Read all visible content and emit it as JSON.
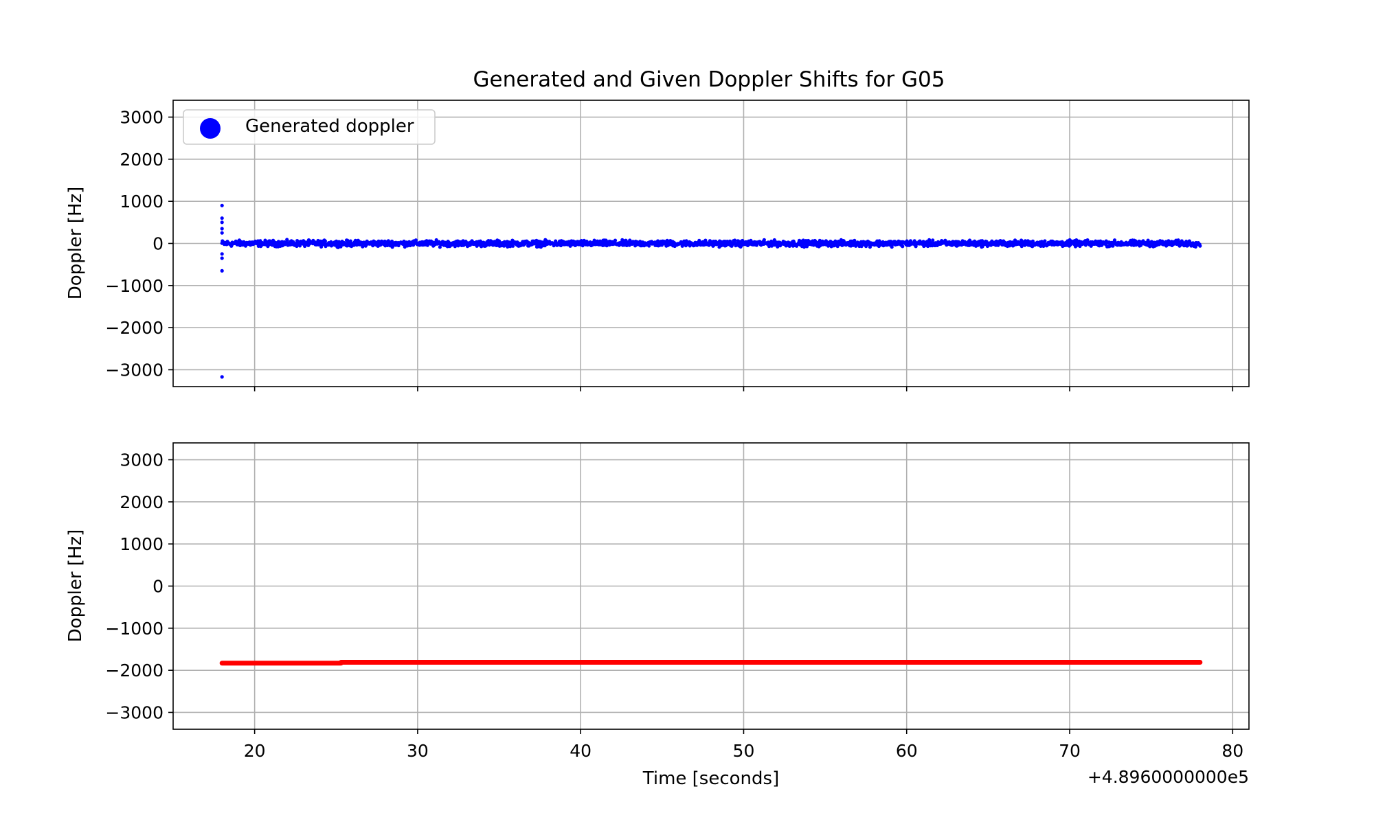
{
  "chart_data": {
    "type": "scatter",
    "title": "Generated and Given Doppler Shifts for G05",
    "xlabel": "Time [seconds]",
    "x_offset_label": "+4.8960000000e5",
    "xlim": [
      15,
      81
    ],
    "xticks": [
      20,
      30,
      40,
      50,
      60,
      70,
      80
    ],
    "xtick_labels": [
      "20",
      "30",
      "40",
      "50",
      "60",
      "70",
      "80"
    ],
    "shared_x": true,
    "grid": true,
    "panels": [
      {
        "position": "top",
        "ylabel": "Doppler [Hz]",
        "ylim": [
          -3400,
          3400
        ],
        "yticks": [
          3000,
          2000,
          1000,
          0,
          -1000,
          -2000,
          -3000
        ],
        "ytick_labels": [
          "3000",
          "2000",
          "1000",
          "0",
          "−1000",
          "−2000",
          "−3000"
        ],
        "legend": {
          "entries": [
            "Generated doppler"
          ],
          "placement": "upper left"
        },
        "series": [
          {
            "name": "Generated doppler",
            "color": "#0000ff",
            "x_range": [
              18,
              78
            ],
            "y_band": [
              -100,
              100
            ],
            "noise_peak_to_peak": 200,
            "outliers": [
              {
                "x": 18,
                "y": 900
              },
              {
                "x": 18,
                "y": 600
              },
              {
                "x": 18,
                "y": 500
              },
              {
                "x": 18,
                "y": 350
              },
              {
                "x": 18,
                "y": 250
              },
              {
                "x": 18,
                "y": -250
              },
              {
                "x": 18,
                "y": -350
              },
              {
                "x": 18,
                "y": -650
              },
              {
                "x": 18,
                "y": -3170
              }
            ]
          }
        ]
      },
      {
        "position": "bottom",
        "ylabel": "Doppler [Hz]",
        "ylim": [
          -3400,
          3400
        ],
        "yticks": [
          3000,
          2000,
          1000,
          0,
          -1000,
          -2000,
          -3000
        ],
        "ytick_labels": [
          "3000",
          "2000",
          "1000",
          "0",
          "−1000",
          "−2000",
          "−3000"
        ],
        "series": [
          {
            "color": "#ff0000",
            "segments": [
              {
                "x_start": 18,
                "x_end": 25.3,
                "y": -1830
              },
              {
                "x_start": 25.3,
                "x_end": 78,
                "y": -1810
              }
            ]
          }
        ]
      }
    ]
  }
}
